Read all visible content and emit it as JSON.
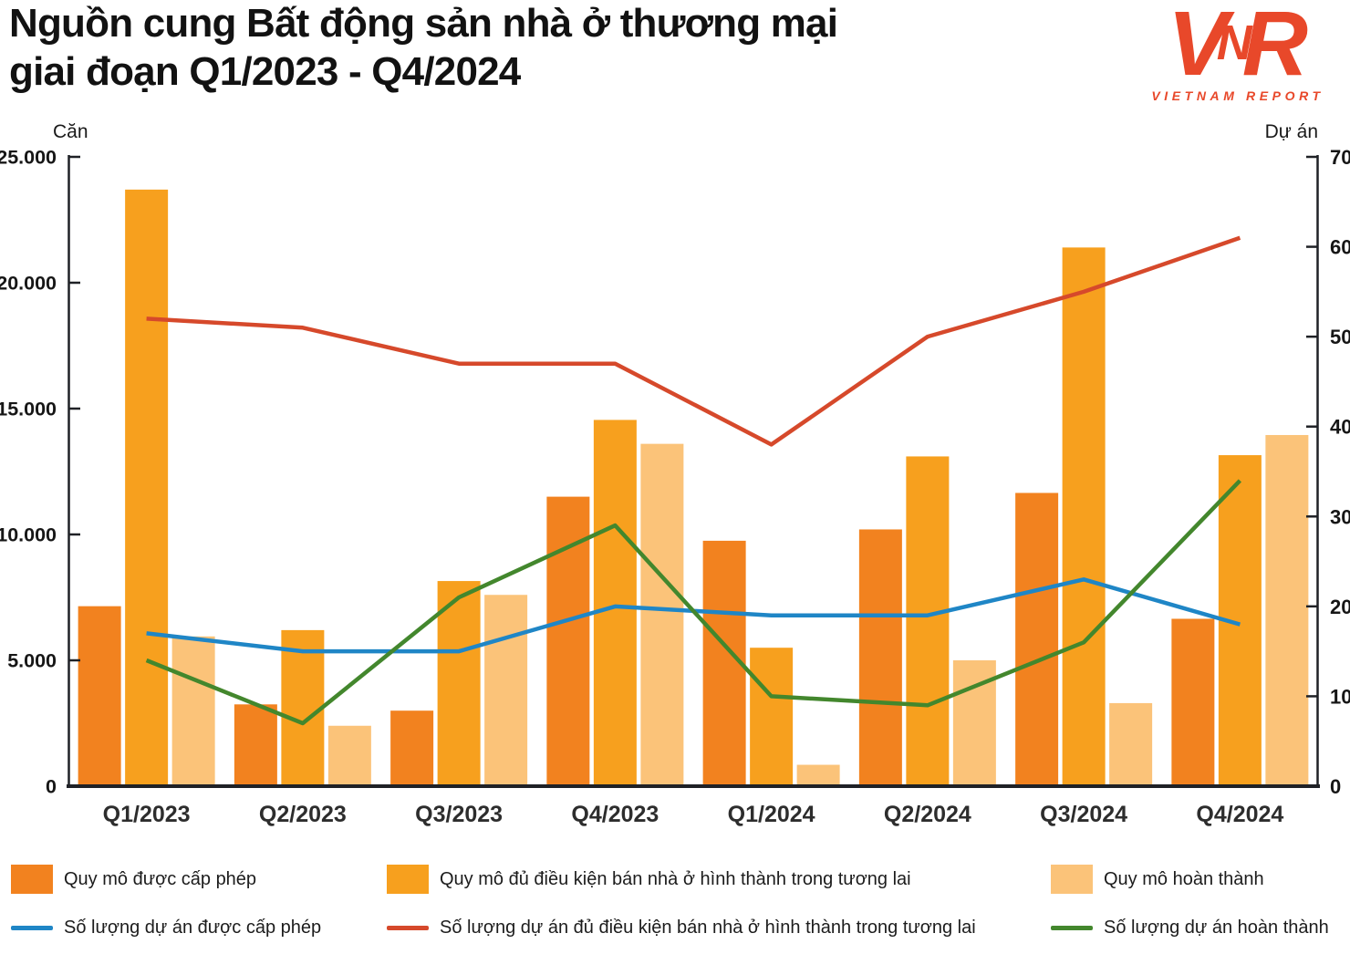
{
  "header": {
    "title_line1": "Nguồn cung Bất động sản nhà ở thương mại",
    "title_line2": "giai đoạn Q1/2023 - Q4/2024",
    "logo": {
      "letter_v": "V",
      "letter_n": "N",
      "letter_r": "R",
      "wordmark": "VIETNAM REPORT",
      "color": "#E8482A"
    }
  },
  "chart_data": {
    "type": "combo-bar-line",
    "categories": [
      "Q1/2023",
      "Q2/2023",
      "Q3/2023",
      "Q4/2023",
      "Q1/2024",
      "Q2/2024",
      "Q3/2024",
      "Q4/2024"
    ],
    "bar_series": [
      {
        "key": "scale-licensed",
        "name": "Quy mô được cấp phép",
        "color": "#F2821F",
        "axis": "left",
        "values": [
          7150,
          3250,
          3000,
          11500,
          9750,
          10200,
          11650,
          6650
        ]
      },
      {
        "key": "scale-eligible",
        "name": "Quy mô đủ điều kiện bán nhà ở hình thành trong tương lai",
        "color": "#F7A01E",
        "axis": "left",
        "values": [
          23700,
          6200,
          8150,
          14550,
          5500,
          13100,
          21400,
          13150
        ]
      },
      {
        "key": "scale-completed",
        "name": "Quy mô hoàn thành",
        "color": "#FBC379",
        "axis": "left",
        "values": [
          5950,
          2400,
          7600,
          13600,
          850,
          5000,
          3300,
          13950
        ]
      }
    ],
    "line_series": [
      {
        "key": "projects-licensed",
        "name": "Số lượng dự án được cấp phép",
        "color": "#1F86C6",
        "axis": "right",
        "values": [
          17,
          15,
          15,
          20,
          19,
          19,
          23,
          18
        ]
      },
      {
        "key": "projects-eligible",
        "name": "Số lượng dự án đủ điều kiện bán nhà ở hình thành trong tương lai",
        "color": "#D6492B",
        "axis": "right",
        "values": [
          52,
          51,
          47,
          47,
          38,
          50,
          55,
          61
        ]
      },
      {
        "key": "projects-completed",
        "name": "Số lượng dự án hoàn thành",
        "color": "#43872D",
        "axis": "right",
        "values": [
          14,
          7,
          21,
          29,
          10,
          9,
          16,
          34
        ]
      }
    ],
    "left_axis": {
      "unit": "Căn",
      "min": 0,
      "max": 25000,
      "tick_step": 5000,
      "tick_labels": [
        "0",
        "5.000",
        "10.000",
        "15.000",
        "20.000",
        "25.000"
      ]
    },
    "right_axis": {
      "unit": "Dự án",
      "min": 0,
      "max": 70,
      "tick_step": 10,
      "tick_labels": [
        "0",
        "10",
        "20",
        "30",
        "40",
        "50",
        "60",
        "70"
      ]
    },
    "grid": false,
    "legend_position": "bottom"
  },
  "colors": {
    "axis_line": "#1f2126",
    "tick_text": "#161616",
    "x_label_text": "#2d2d2d",
    "title_text": "#121212"
  }
}
